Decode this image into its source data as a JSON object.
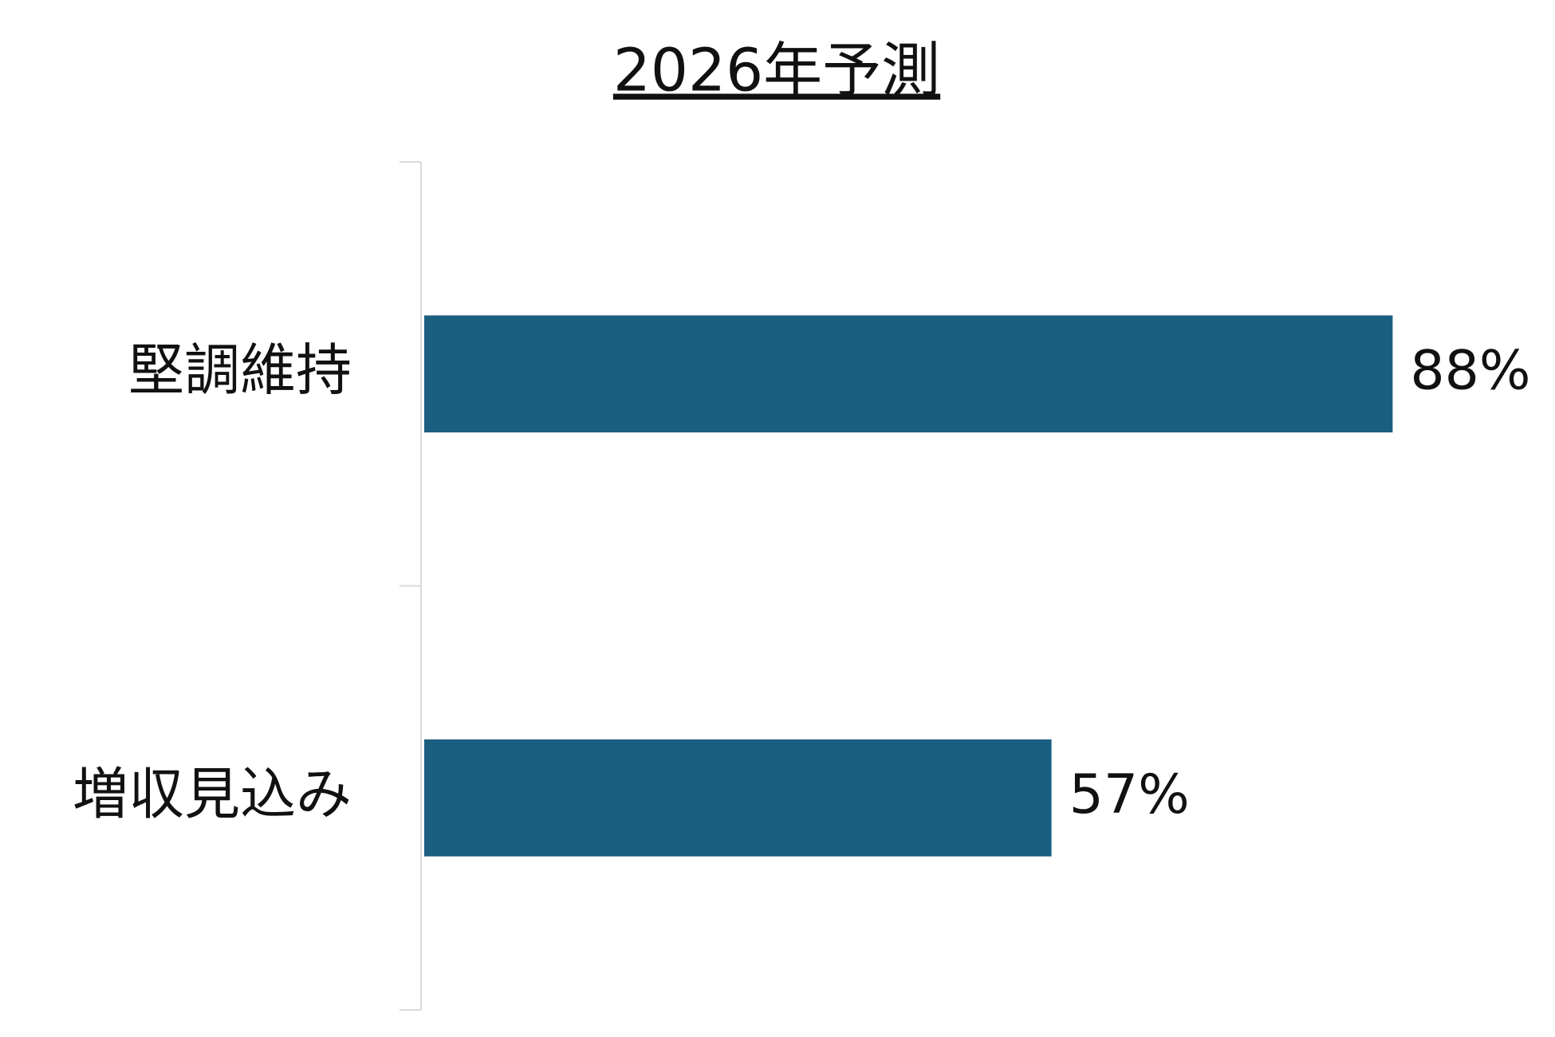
{
  "chart_data": {
    "type": "bar",
    "orientation": "horizontal",
    "title": "2026年予測",
    "categories": [
      "堅調維持",
      "増収見込み"
    ],
    "values": [
      88,
      57
    ],
    "value_labels": [
      "88%",
      "57%"
    ],
    "color": "#1a5f80",
    "xlim": [
      0,
      100
    ]
  }
}
